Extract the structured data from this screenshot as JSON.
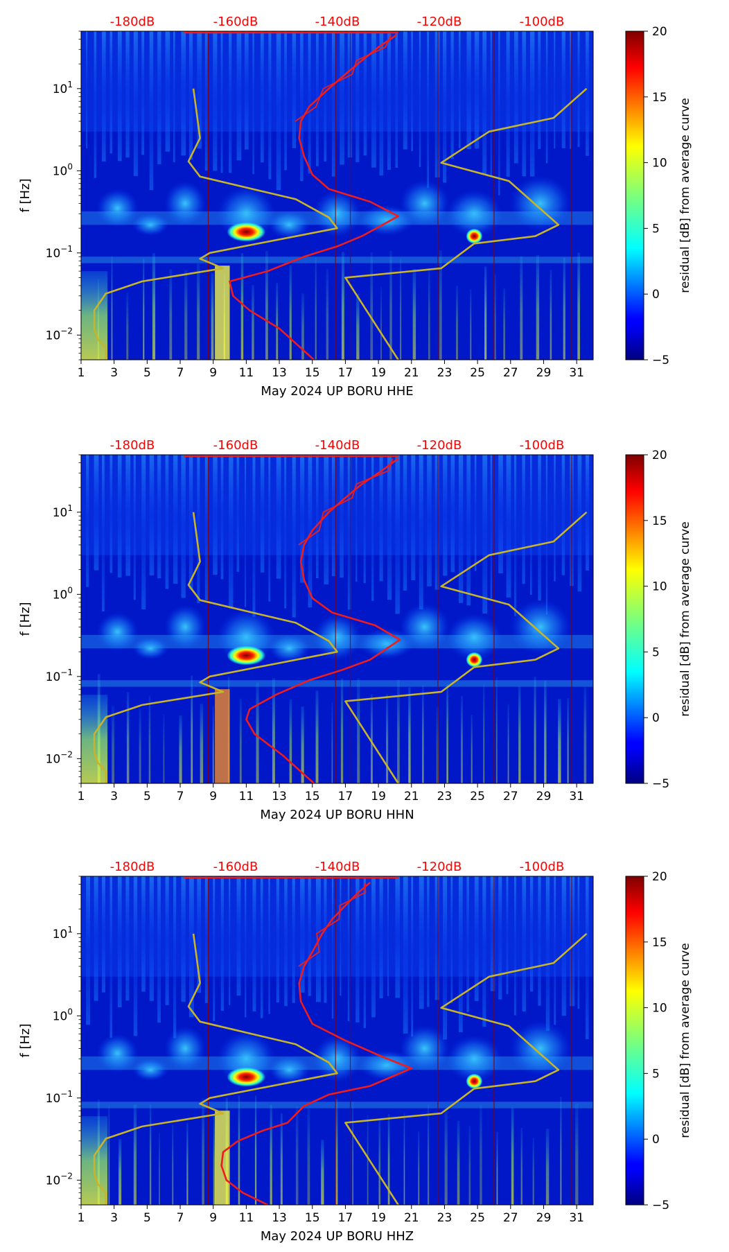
{
  "chart_data": [
    {
      "type": "heatmap",
      "xlabel": "May 2024 UP BORU  HHE",
      "ylabel": "f [Hz]",
      "colorbar_label": "residual [dB] from average curve",
      "x_range": [
        1,
        32
      ],
      "x_ticks": [
        "1",
        "3",
        "5",
        "7",
        "9",
        "11",
        "13",
        "15",
        "17",
        "19",
        "21",
        "23",
        "25",
        "27",
        "29",
        "31"
      ],
      "y_range_hz": [
        0.005,
        50
      ],
      "y_ticks": [
        {
          "value": 0.01,
          "base": "10",
          "exp": "−2"
        },
        {
          "value": 0.1,
          "base": "10",
          "exp": "−1"
        },
        {
          "value": 1,
          "base": "10",
          "exp": "0"
        },
        {
          "value": 10,
          "base": "10",
          "exp": "1"
        }
      ],
      "top_db_labels": [
        "-180dB",
        "-160dB",
        "-140dB",
        "-120dB",
        "-100dB"
      ],
      "colorbar_range": [
        -5,
        20
      ],
      "colorbar_ticks": [
        "−5",
        "0",
        "5",
        "10",
        "15",
        "20"
      ],
      "hotspots": [
        {
          "day": 11.0,
          "freq_hz": 0.18
        },
        {
          "day": 24.8,
          "freq_hz": 0.16
        }
      ]
    },
    {
      "type": "heatmap",
      "xlabel": "May 2024 UP BORU  HHN",
      "ylabel": "f [Hz]",
      "colorbar_label": "residual [dB] from average curve",
      "x_range": [
        1,
        32
      ],
      "x_ticks": [
        "1",
        "3",
        "5",
        "7",
        "9",
        "11",
        "13",
        "15",
        "17",
        "19",
        "21",
        "23",
        "25",
        "27",
        "29",
        "31"
      ],
      "y_range_hz": [
        0.005,
        50
      ],
      "y_ticks": [
        {
          "value": 0.01,
          "base": "10",
          "exp": "−2"
        },
        {
          "value": 0.1,
          "base": "10",
          "exp": "−1"
        },
        {
          "value": 1,
          "base": "10",
          "exp": "0"
        },
        {
          "value": 10,
          "base": "10",
          "exp": "1"
        }
      ],
      "top_db_labels": [
        "-180dB",
        "-160dB",
        "-140dB",
        "-120dB",
        "-100dB"
      ],
      "colorbar_range": [
        -5,
        20
      ],
      "colorbar_ticks": [
        "−5",
        "0",
        "5",
        "10",
        "15",
        "20"
      ],
      "hotspots": [
        {
          "day": 11.0,
          "freq_hz": 0.18
        },
        {
          "day": 24.8,
          "freq_hz": 0.16
        }
      ]
    },
    {
      "type": "heatmap",
      "xlabel": "May 2024 UP BORU  HHZ",
      "ylabel": "f [Hz]",
      "colorbar_label": "residual [dB] from average curve",
      "x_range": [
        1,
        32
      ],
      "x_ticks": [
        "1",
        "3",
        "5",
        "7",
        "9",
        "11",
        "13",
        "15",
        "17",
        "19",
        "21",
        "23",
        "25",
        "27",
        "29",
        "31"
      ],
      "y_range_hz": [
        0.005,
        50
      ],
      "y_ticks": [
        {
          "value": 0.01,
          "base": "10",
          "exp": "−2"
        },
        {
          "value": 0.1,
          "base": "10",
          "exp": "−1"
        },
        {
          "value": 1,
          "base": "10",
          "exp": "0"
        },
        {
          "value": 10,
          "base": "10",
          "exp": "1"
        }
      ],
      "top_db_labels": [
        "-180dB",
        "-160dB",
        "-140dB",
        "-120dB",
        "-100dB"
      ],
      "colorbar_range": [
        -5,
        20
      ],
      "colorbar_ticks": [
        "−5",
        "0",
        "5",
        "10",
        "15",
        "20"
      ],
      "hotspots": [
        {
          "day": 11.0,
          "freq_hz": 0.18
        },
        {
          "day": 24.8,
          "freq_hz": 0.16
        }
      ]
    }
  ],
  "overlays": {
    "yellow_curve": {
      "name": "noise model curve (yellow)",
      "points": [
        [
          2.5,
          0.005
        ],
        [
          2.5,
          0.007
        ],
        [
          2.0,
          0.009
        ],
        [
          1.8,
          0.012
        ],
        [
          1.8,
          0.02
        ],
        [
          2.5,
          0.032
        ],
        [
          4.7,
          0.045
        ],
        [
          9.6,
          0.065
        ],
        [
          8.2,
          0.085
        ],
        [
          8.8,
          0.1
        ],
        [
          16.5,
          0.2
        ],
        [
          16.0,
          0.27
        ],
        [
          14.0,
          0.45
        ],
        [
          8.2,
          0.85
        ],
        [
          7.5,
          1.3
        ],
        [
          8.2,
          2.5
        ],
        [
          8.0,
          5.0
        ],
        [
          7.8,
          10.0
        ]
      ]
    },
    "yellow_curve_2": {
      "name": "second model curve (yellow)",
      "points": [
        [
          20.2,
          0.005
        ],
        [
          17.0,
          0.05
        ],
        [
          22.8,
          0.065
        ],
        [
          24.8,
          0.13
        ],
        [
          28.5,
          0.16
        ],
        [
          29.9,
          0.22
        ],
        [
          26.9,
          0.75
        ],
        [
          22.8,
          1.25
        ],
        [
          25.7,
          3.0
        ],
        [
          29.6,
          4.4
        ],
        [
          31.6,
          10.0
        ]
      ]
    },
    "red_curve": {
      "name": "average curve (red)",
      "hhe": [
        [
          15.1,
          0.005
        ],
        [
          13.0,
          0.012
        ],
        [
          11.2,
          0.02
        ],
        [
          10.2,
          0.03
        ],
        [
          10.0,
          0.045
        ],
        [
          12.3,
          0.06
        ],
        [
          14.5,
          0.09
        ],
        [
          16.5,
          0.12
        ],
        [
          18.0,
          0.16
        ],
        [
          20.2,
          0.28
        ],
        [
          18.5,
          0.42
        ],
        [
          16.0,
          0.6
        ],
        [
          15.0,
          0.9
        ],
        [
          14.5,
          1.5
        ],
        [
          14.2,
          2.5
        ],
        [
          14.3,
          4.0
        ],
        [
          14.8,
          6.0
        ],
        [
          16.0,
          10.0
        ],
        [
          17.0,
          15.0
        ],
        [
          18.0,
          22.0
        ],
        [
          19.0,
          32.0
        ],
        [
          20.1,
          45.0
        ]
      ],
      "hhn": [
        [
          15.1,
          0.005
        ],
        [
          13.2,
          0.011
        ],
        [
          11.5,
          0.02
        ],
        [
          11.0,
          0.03
        ],
        [
          11.2,
          0.04
        ],
        [
          12.8,
          0.06
        ],
        [
          14.8,
          0.09
        ],
        [
          16.8,
          0.12
        ],
        [
          18.5,
          0.16
        ],
        [
          20.3,
          0.28
        ],
        [
          18.8,
          0.42
        ],
        [
          16.2,
          0.6
        ],
        [
          15.0,
          0.9
        ],
        [
          14.5,
          1.5
        ],
        [
          14.3,
          2.5
        ],
        [
          14.5,
          4.0
        ],
        [
          15.0,
          6.0
        ],
        [
          16.0,
          10.0
        ],
        [
          17.0,
          15.0
        ],
        [
          18.0,
          22.0
        ],
        [
          19.2,
          32.0
        ],
        [
          20.2,
          45.0
        ]
      ],
      "hhz": [
        [
          12.3,
          0.005
        ],
        [
          10.8,
          0.007
        ],
        [
          9.8,
          0.01
        ],
        [
          9.5,
          0.015
        ],
        [
          9.6,
          0.022
        ],
        [
          10.5,
          0.03
        ],
        [
          12.0,
          0.04
        ],
        [
          13.5,
          0.05
        ],
        [
          14.5,
          0.08
        ],
        [
          16.0,
          0.11
        ],
        [
          18.5,
          0.14
        ],
        [
          21.0,
          0.23
        ],
        [
          19.2,
          0.32
        ],
        [
          17.0,
          0.5
        ],
        [
          15.0,
          0.8
        ],
        [
          14.3,
          1.5
        ],
        [
          14.2,
          2.5
        ],
        [
          14.5,
          4.0
        ],
        [
          15.0,
          6.0
        ],
        [
          15.6,
          10.0
        ],
        [
          16.2,
          15.0
        ],
        [
          17.0,
          22.0
        ],
        [
          17.8,
          32.0
        ],
        [
          18.5,
          42.0
        ]
      ]
    }
  },
  "colors": {
    "red_curve": "#ee1c1c",
    "yellow_curve": "#c8b42a",
    "db_label": "#ff0000",
    "axis": "#000000"
  }
}
